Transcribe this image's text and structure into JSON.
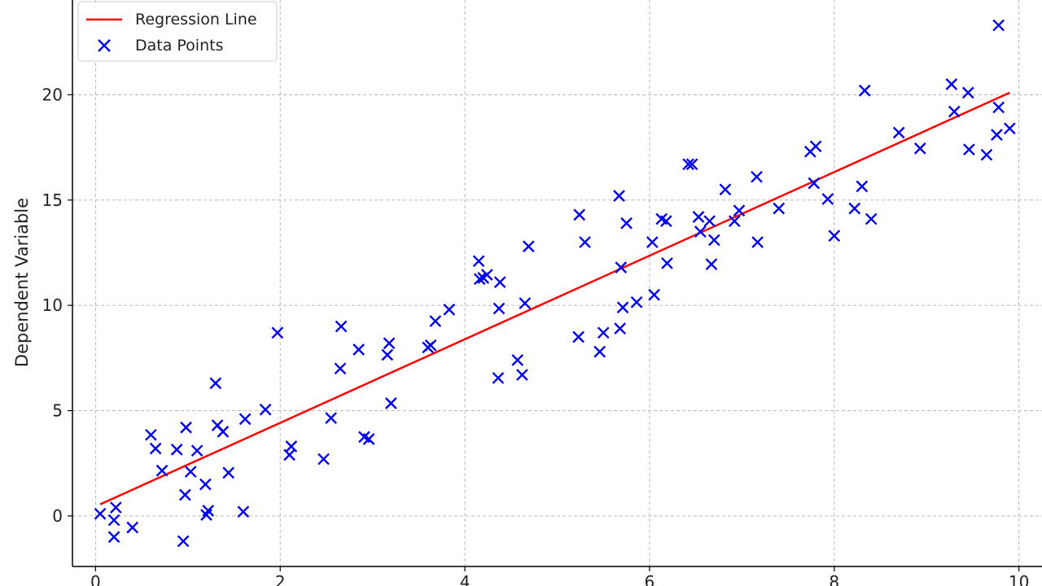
{
  "chart_data": {
    "type": "scatter",
    "title": "",
    "xlabel": "",
    "ylabel": "Dependent Variable",
    "xlim": [
      -0.25,
      10.25
    ],
    "ylim": [
      -2.4,
      24.5
    ],
    "xticks": [
      0,
      2,
      4,
      6,
      8,
      10
    ],
    "yticks": [
      0,
      5,
      10,
      15,
      20
    ],
    "grid": true,
    "legend": {
      "placement": "top-left",
      "entries": [
        "Regression Line",
        "Data Points"
      ]
    },
    "colors": {
      "line": "#ff0000",
      "points": "#0000ee",
      "grid": "#b0b0b0",
      "axis": "#000000"
    },
    "series": [
      {
        "name": "Regression Line",
        "kind": "line",
        "x": [
          0.05,
          9.9
        ],
        "y": [
          0.55,
          20.1
        ]
      },
      {
        "name": "Data Points",
        "kind": "scatter",
        "x": [
          0.05,
          0.2,
          0.2,
          0.22,
          0.4,
          0.6,
          0.65,
          0.72,
          0.88,
          0.95,
          0.97,
          0.98,
          1.03,
          1.1,
          1.19,
          1.2,
          1.22,
          1.3,
          1.32,
          1.38,
          1.44,
          1.6,
          1.62,
          1.84,
          1.97,
          2.1,
          2.12,
          2.47,
          2.55,
          2.65,
          2.66,
          2.85,
          2.91,
          2.96,
          3.16,
          3.18,
          3.2,
          3.6,
          3.63,
          3.68,
          3.83,
          4.15,
          4.16,
          4.2,
          4.24,
          4.36,
          4.37,
          4.38,
          4.57,
          4.62,
          4.65,
          4.69,
          5.23,
          5.24,
          5.3,
          5.46,
          5.5,
          5.67,
          5.68,
          5.69,
          5.71,
          5.75,
          5.86,
          6.03,
          6.05,
          6.13,
          6.18,
          6.19,
          6.42,
          6.46,
          6.53,
          6.55,
          6.65,
          6.67,
          6.7,
          6.82,
          6.92,
          6.97,
          7.16,
          7.17,
          7.4,
          7.74,
          7.78,
          7.8,
          7.93,
          8.0,
          8.22,
          8.3,
          8.33,
          8.4,
          8.7,
          8.93,
          9.27,
          9.3,
          9.45,
          9.46,
          9.65,
          9.76,
          9.78,
          9.78,
          9.9
        ],
        "y": [
          0.1,
          -0.2,
          -1.0,
          0.4,
          -0.55,
          3.85,
          3.2,
          2.15,
          3.15,
          -1.2,
          1.0,
          4.2,
          2.1,
          3.1,
          1.5,
          0.05,
          0.25,
          6.3,
          4.3,
          4.0,
          2.05,
          0.2,
          4.6,
          5.05,
          8.7,
          2.9,
          3.3,
          2.7,
          4.65,
          7.0,
          9.0,
          7.9,
          3.75,
          3.65,
          7.65,
          8.2,
          5.35,
          8.0,
          8.1,
          9.25,
          9.8,
          12.1,
          11.25,
          11.3,
          11.45,
          6.55,
          9.85,
          11.1,
          7.4,
          6.7,
          10.1,
          12.8,
          8.5,
          14.3,
          13.0,
          7.8,
          8.7,
          15.2,
          8.9,
          11.8,
          9.9,
          13.9,
          10.15,
          13.0,
          10.5,
          14.1,
          14.0,
          12.0,
          16.7,
          16.7,
          14.2,
          13.5,
          14.0,
          11.95,
          13.1,
          15.5,
          14.0,
          14.5,
          16.1,
          13.0,
          14.6,
          17.3,
          15.8,
          17.55,
          15.05,
          13.3,
          14.6,
          15.65,
          20.2,
          14.1,
          18.2,
          17.45,
          20.5,
          19.2,
          20.1,
          17.4,
          17.15,
          18.1,
          19.4,
          23.3,
          18.4
        ]
      }
    ]
  }
}
